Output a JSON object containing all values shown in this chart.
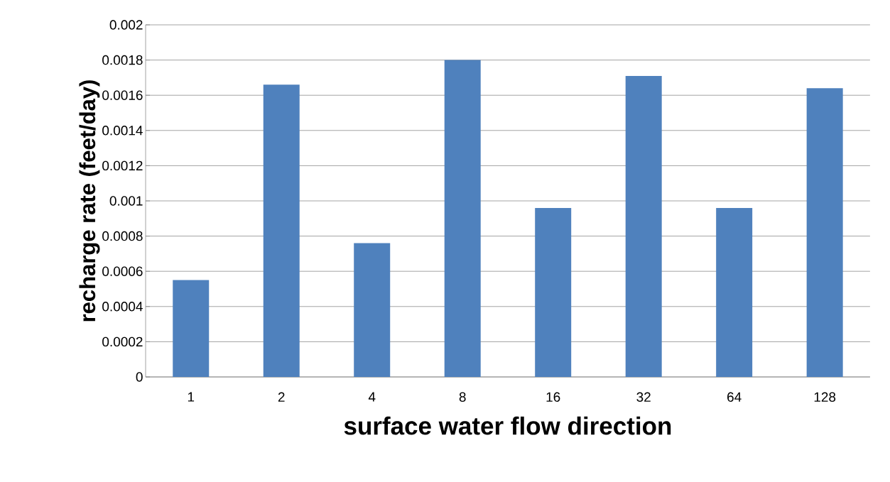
{
  "chart_data": {
    "type": "bar",
    "xlabel": "surface water flow direction",
    "ylabel": "recharge rate (feet/day)",
    "categories": [
      "1",
      "2",
      "4",
      "8",
      "16",
      "32",
      "64",
      "128"
    ],
    "values": [
      0.00055,
      0.00166,
      0.00076,
      0.0018,
      0.00096,
      0.00171,
      0.00096,
      0.00164
    ],
    "color": "#4f81bd",
    "ylim": [
      0,
      0.002
    ],
    "yticks": [
      0,
      0.0002,
      0.0004,
      0.0006,
      0.0008,
      0.001,
      0.0012,
      0.0014,
      0.0016,
      0.0018,
      0.002
    ],
    "grid": "y"
  }
}
